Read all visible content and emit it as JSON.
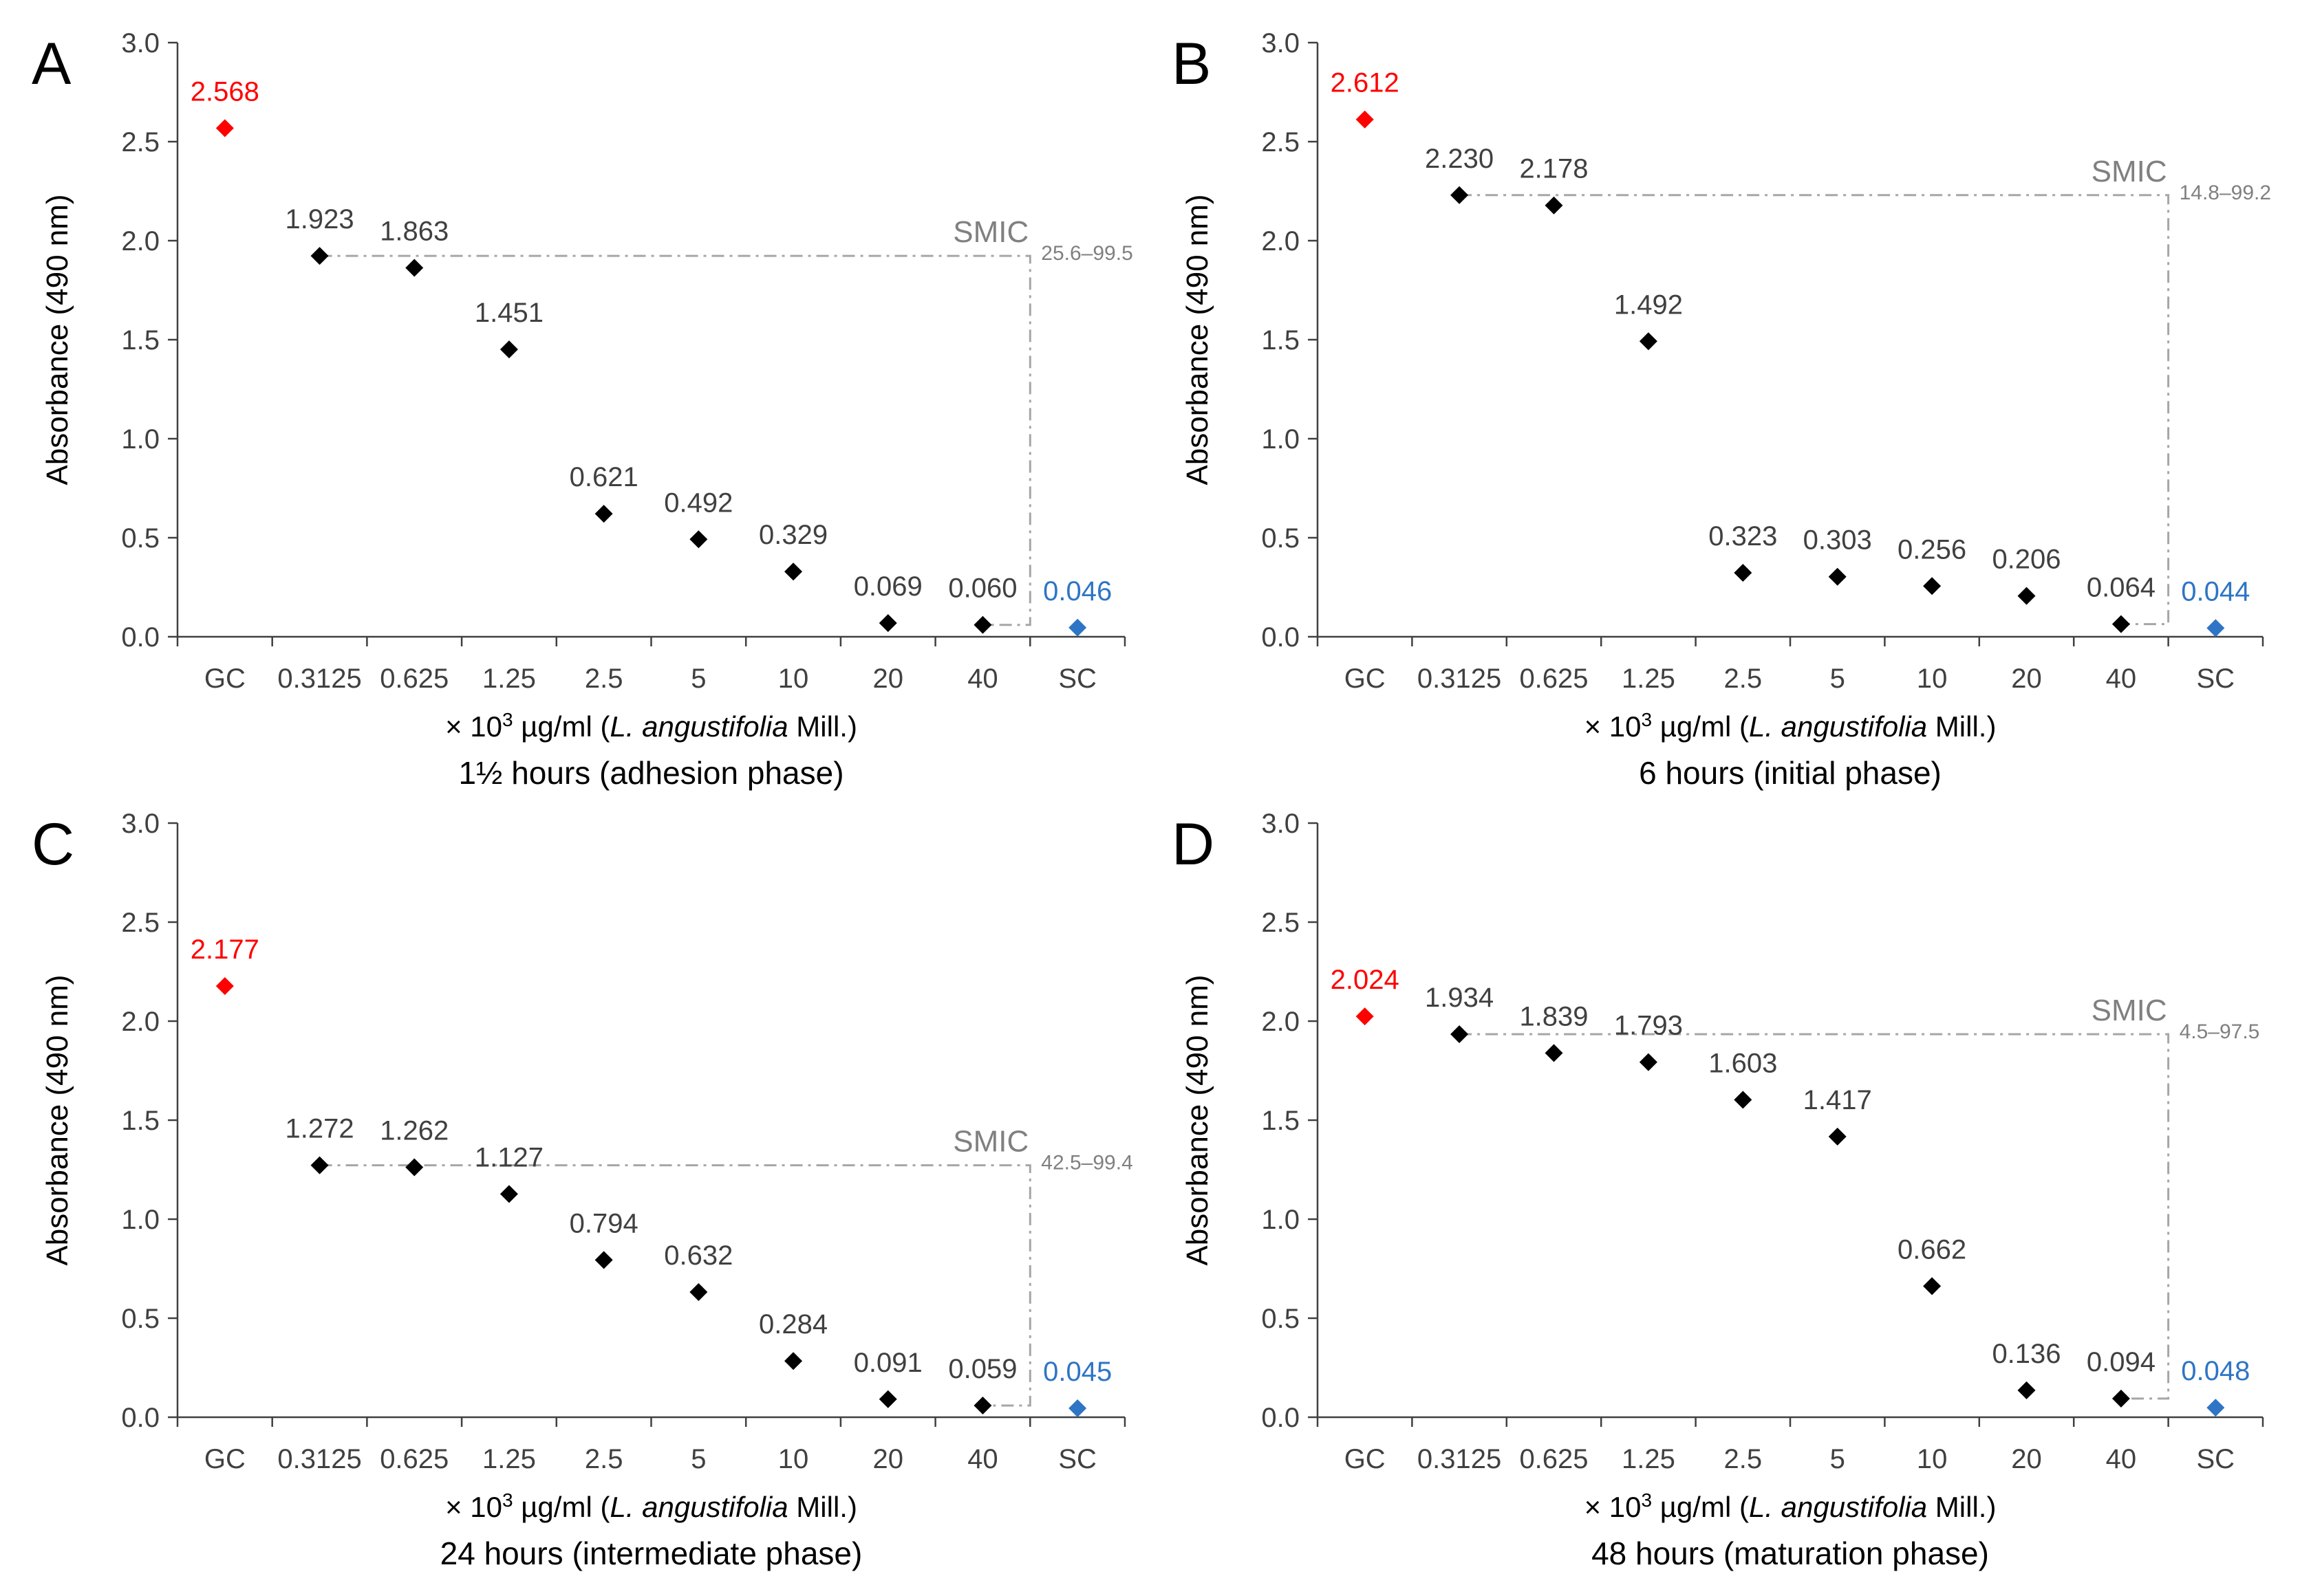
{
  "figure": {
    "ylabel": "Absorbance (490 nm)",
    "xlabel_prefix": "× 10",
    "xlabel_sup": "3",
    "xlabel_unit": " µg/ml (",
    "xlabel_species": "L. angustifolia",
    "xlabel_suffix": " Mill.)",
    "smic_label": "SMIC",
    "colors": {
      "gc": "#ff0000",
      "sc": "#2e75c5",
      "sample": "#000000",
      "smic": "#a6a6a6",
      "text": "#404040",
      "axis": "#404040"
    }
  },
  "chart_data": [
    {
      "type": "scatter",
      "panel": "A",
      "title": "1½ hours (adhesion phase)",
      "categories": [
        "GC",
        "0.3125",
        "0.625",
        "1.25",
        "2.5",
        "5",
        "10",
        "20",
        "40",
        "SC"
      ],
      "values": [
        2.568,
        1.923,
        1.863,
        1.451,
        0.621,
        0.492,
        0.329,
        0.069,
        0.06,
        0.046
      ],
      "value_labels": [
        "2.568",
        "1.923",
        "1.863",
        "1.451",
        "0.621",
        "0.492",
        "0.329",
        "0.069",
        "0.060",
        "0.046"
      ],
      "yticks": [
        "0.0",
        "0.5",
        "1.0",
        "1.5",
        "2.0",
        "2.5",
        "3.0"
      ],
      "ylim": [
        0,
        3
      ],
      "smic_range": "25.6–99.5",
      "smic_from_index": 1,
      "smic_to_index": 8
    },
    {
      "type": "scatter",
      "panel": "B",
      "title": "6 hours (initial phase)",
      "categories": [
        "GC",
        "0.3125",
        "0.625",
        "1.25",
        "2.5",
        "5",
        "10",
        "20",
        "40",
        "SC"
      ],
      "values": [
        2.612,
        2.23,
        2.178,
        1.492,
        0.323,
        0.303,
        0.256,
        0.206,
        0.064,
        0.044
      ],
      "value_labels": [
        "2.612",
        "2.230",
        "2.178",
        "1.492",
        "0.323",
        "0.303",
        "0.256",
        "0.206",
        "0.064",
        "0.044"
      ],
      "yticks": [
        "0.0",
        "0.5",
        "1.0",
        "1.5",
        "2.0",
        "2.5",
        "3.0"
      ],
      "ylim": [
        0,
        3
      ],
      "smic_range": "14.8–99.2",
      "smic_from_index": 1,
      "smic_to_index": 8
    },
    {
      "type": "scatter",
      "panel": "C",
      "title": "24 hours (intermediate phase)",
      "categories": [
        "GC",
        "0.3125",
        "0.625",
        "1.25",
        "2.5",
        "5",
        "10",
        "20",
        "40",
        "SC"
      ],
      "values": [
        2.177,
        1.272,
        1.262,
        1.127,
        0.794,
        0.632,
        0.284,
        0.091,
        0.059,
        0.045
      ],
      "value_labels": [
        "2.177",
        "1.272",
        "1.262",
        "1.127",
        "0.794",
        "0.632",
        "0.284",
        "0.091",
        "0.059",
        "0.045"
      ],
      "yticks": [
        "0.0",
        "0.5",
        "1.0",
        "1.5",
        "2.0",
        "2.5",
        "3.0"
      ],
      "ylim": [
        0,
        3
      ],
      "smic_range": "42.5–99.4",
      "smic_from_index": 1,
      "smic_to_index": 8
    },
    {
      "type": "scatter",
      "panel": "D",
      "title": "48 hours (maturation phase)",
      "categories": [
        "GC",
        "0.3125",
        "0.625",
        "1.25",
        "2.5",
        "5",
        "10",
        "20",
        "40",
        "SC"
      ],
      "values": [
        2.024,
        1.934,
        1.839,
        1.793,
        1.603,
        1.417,
        0.662,
        0.136,
        0.094,
        0.048
      ],
      "value_labels": [
        "2.024",
        "1.934",
        "1.839",
        "1.793",
        "1.603",
        "1.417",
        "0.662",
        "0.136",
        "0.094",
        "0.048"
      ],
      "yticks": [
        "0.0",
        "0.5",
        "1.0",
        "1.5",
        "2.0",
        "2.5",
        "3.0"
      ],
      "ylim": [
        0,
        3
      ],
      "smic_range": "4.5–97.5",
      "smic_from_index": 1,
      "smic_to_index": 8
    }
  ]
}
